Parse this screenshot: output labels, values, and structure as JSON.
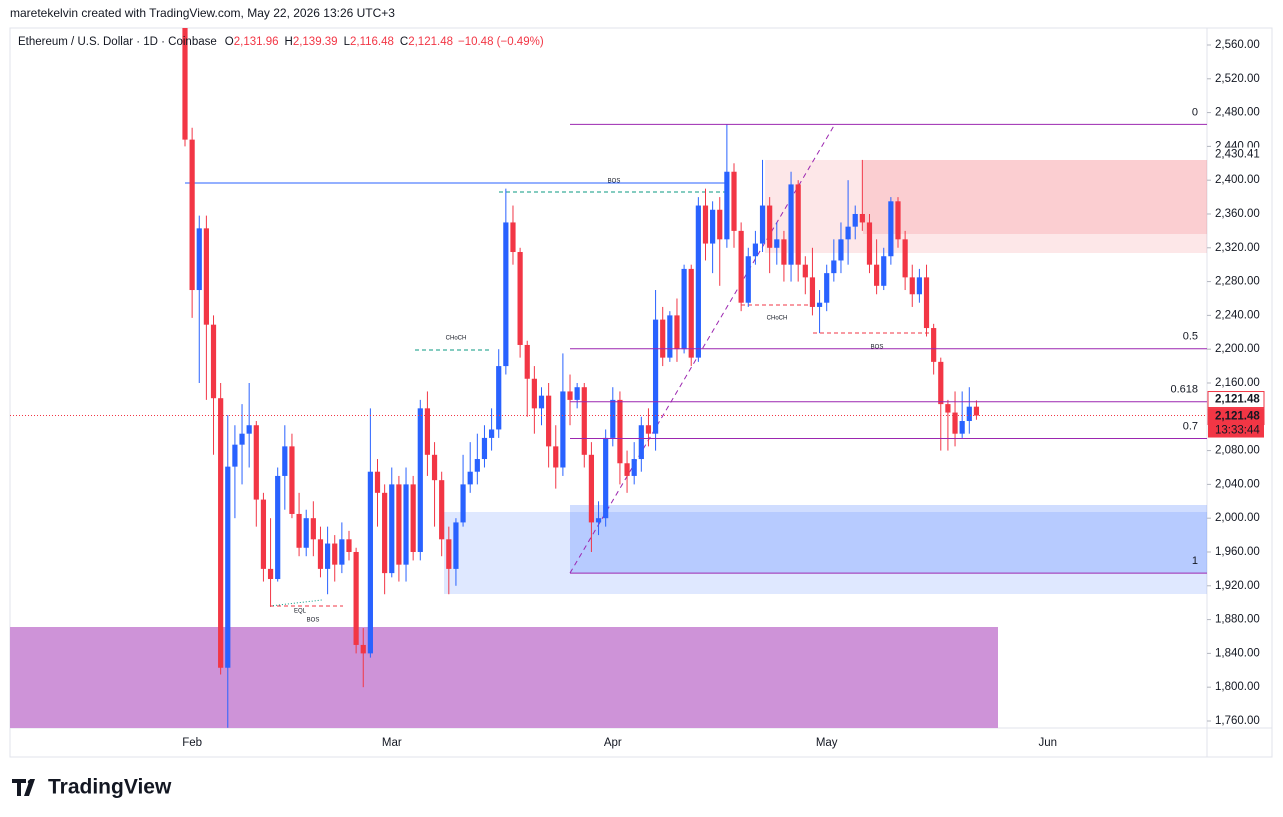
{
  "header": {
    "attribution": "maretekelvin created with TradingView.com, May 22, 2026 13:26 UTC+3"
  },
  "footer": {
    "brand": "TradingView"
  },
  "chart_data": {
    "type": "candlestick",
    "title": "Ethereum / U.S. Dollar · 1D · Coinbase",
    "ohlc_legend": [
      {
        "key": "O",
        "label": "2,131.96"
      },
      {
        "key": "H",
        "label": "2,139.39"
      },
      {
        "key": "L",
        "label": "2,116.48"
      },
      {
        "key": "C",
        "label": "2,121.48"
      }
    ],
    "change_label": "−10.48 (−0.49%)",
    "categories": [
      null,
      "Feb",
      null,
      null,
      null,
      null,
      null,
      null,
      null,
      null,
      null,
      null,
      null,
      null,
      null,
      null,
      null,
      null,
      null,
      null,
      null,
      null,
      null,
      null,
      null,
      null,
      null,
      null,
      null,
      "Mar",
      null,
      null,
      null,
      null,
      null,
      null,
      null,
      null,
      null,
      null,
      null,
      null,
      null,
      null,
      null,
      null,
      null,
      null,
      null,
      null,
      null,
      null,
      null,
      null,
      null,
      null,
      null,
      null,
      null,
      null,
      "Apr",
      null,
      null,
      null,
      null,
      null,
      null,
      null,
      null,
      null,
      null,
      null,
      null,
      null,
      null,
      null,
      null,
      null,
      null,
      null,
      null,
      null,
      null,
      null,
      null,
      null,
      null,
      null,
      null,
      null,
      "May",
      null,
      null,
      null,
      null,
      null,
      null,
      null,
      null,
      null,
      null,
      null,
      null,
      null,
      null,
      null,
      null,
      null,
      null,
      null,
      null,
      null,
      null,
      null,
      null,
      null,
      null,
      null,
      null,
      null,
      null,
      "Jun"
    ],
    "open": [
      2590,
      2448,
      2270,
      2343,
      2229,
      2142,
      1823,
      2061,
      2087,
      2100,
      2110,
      2022,
      1940,
      1928,
      2050,
      2085,
      2005,
      1965,
      2000,
      1975,
      1940,
      1970,
      1945,
      1975,
      1960,
      1850,
      1840,
      2055,
      2030,
      1935,
      2040,
      1945,
      2040,
      1960,
      2130,
      2075,
      2045,
      1975,
      1940,
      1995,
      2040,
      2055,
      2070,
      2095,
      2105,
      2180,
      2350,
      2315,
      2205,
      2165,
      2130,
      2145,
      2085,
      2060,
      2150,
      2140,
      2155,
      2075,
      1995,
      2000,
      2095,
      2140,
      2065,
      2050,
      2070,
      2110,
      2100,
      2235,
      2190,
      2240,
      2200,
      2295,
      2190,
      2370,
      2325,
      2365,
      2330,
      2410,
      2340,
      2255,
      2310,
      2325,
      2370,
      2320,
      2330,
      2300,
      2395,
      2300,
      2285,
      2250,
      2255,
      2290,
      2305,
      2330,
      2345,
      2360,
      2350,
      2300,
      2275,
      2310,
      2375,
      2330,
      2285,
      2265,
      2285,
      2225,
      2185,
      2135,
      2125,
      2100,
      2115,
      2131.96,
      null,
      null,
      null,
      null,
      null,
      null,
      null,
      null,
      null,
      null
    ],
    "high": [
      2600,
      2462,
      2358,
      2358,
      2240,
      2160,
      2122,
      2110,
      2135,
      2160,
      2115,
      2030,
      2000,
      2060,
      2110,
      2100,
      2030,
      2010,
      2020,
      1990,
      1990,
      1980,
      1995,
      1985,
      1965,
      1870,
      2130,
      2070,
      2040,
      2060,
      2050,
      2060,
      2050,
      2140,
      2150,
      2090,
      2055,
      1990,
      2000,
      2075,
      2090,
      2100,
      2110,
      2130,
      2200,
      2390,
      2370,
      2320,
      2210,
      2180,
      2155,
      2160,
      2110,
      2195,
      2170,
      2160,
      2160,
      2090,
      2020,
      2105,
      2155,
      2150,
      2080,
      2090,
      2120,
      2130,
      2270,
      2250,
      2245,
      2260,
      2300,
      2300,
      2380,
      2390,
      2375,
      2380,
      2466,
      2420,
      2350,
      2320,
      2340,
      2424,
      2380,
      2350,
      2340,
      2410,
      2400,
      2310,
      2320,
      2270,
      2300,
      2330,
      2350,
      2400,
      2370,
      2424,
      2360,
      2330,
      2320,
      2380,
      2380,
      2340,
      2300,
      2295,
      2300,
      2230,
      2190,
      2140,
      2150,
      2150,
      2155,
      2139.39,
      null,
      null,
      null,
      null,
      null,
      null,
      null,
      null,
      null,
      null
    ],
    "low": [
      2440,
      2237,
      2160,
      2140,
      2075,
      1815,
      1752,
      2000,
      2040,
      2060,
      1990,
      1925,
      1895,
      1925,
      2010,
      2000,
      1955,
      1955,
      1955,
      1930,
      1910,
      1925,
      1935,
      1950,
      1840,
      1800,
      1835,
      1990,
      1910,
      1930,
      1925,
      1925,
      1950,
      1950,
      2050,
      1990,
      1955,
      1910,
      1920,
      1990,
      2030,
      2040,
      2060,
      2080,
      2095,
      2170,
      2300,
      2190,
      2120,
      2100,
      2110,
      2060,
      2035,
      2050,
      2110,
      2130,
      2060,
      1960,
      1980,
      1990,
      2085,
      2040,
      2030,
      2040,
      2055,
      2085,
      2080,
      2180,
      2185,
      2185,
      2195,
      2180,
      2185,
      2305,
      2290,
      2275,
      2320,
      2320,
      2245,
      2250,
      2300,
      2315,
      2290,
      2300,
      2280,
      2280,
      2280,
      2265,
      2240,
      2219,
      2245,
      2280,
      2290,
      2300,
      2330,
      2340,
      2290,
      2265,
      2270,
      2300,
      2320,
      2270,
      2250,
      2255,
      2215,
      2170,
      2080,
      2080,
      2085,
      2095,
      2100,
      2116.48,
      null,
      null,
      null,
      null,
      null,
      null,
      null,
      null,
      null,
      null
    ],
    "close": [
      2448,
      2270,
      2343,
      2229,
      2142,
      1823,
      2061,
      2087,
      2100,
      2110,
      2022,
      1940,
      1928,
      2050,
      2085,
      2005,
      1965,
      2000,
      1975,
      1940,
      1970,
      1945,
      1975,
      1960,
      1850,
      1840,
      2055,
      2030,
      1935,
      2040,
      1945,
      2040,
      1960,
      2130,
      2075,
      2045,
      1975,
      1940,
      1995,
      2040,
      2055,
      2070,
      2095,
      2105,
      2180,
      2350,
      2315,
      2205,
      2165,
      2130,
      2145,
      2085,
      2060,
      2150,
      2140,
      2155,
      2075,
      1995,
      2000,
      2095,
      2140,
      2065,
      2050,
      2070,
      2110,
      2100,
      2235,
      2190,
      2240,
      2200,
      2295,
      2190,
      2370,
      2325,
      2365,
      2330,
      2410,
      2340,
      2255,
      2310,
      2325,
      2370,
      2320,
      2330,
      2300,
      2395,
      2300,
      2285,
      2250,
      2255,
      2290,
      2305,
      2330,
      2345,
      2360,
      2350,
      2300,
      2275,
      2310,
      2375,
      2330,
      2285,
      2265,
      2285,
      2225,
      2185,
      2135,
      2125,
      2100,
      2115,
      2131.96,
      2121.48,
      null,
      null,
      null,
      null,
      null,
      null,
      null,
      null,
      null,
      null
    ],
    "up_color": "#2962ff",
    "down_color": "#f23645",
    "ylim": [
      1751.7,
      2580.1
    ],
    "yticks": [
      {
        "value": 1760,
        "label": "1,760.00"
      },
      {
        "value": 1800,
        "label": "1,800.00"
      },
      {
        "value": 1840,
        "label": "1,840.00"
      },
      {
        "value": 1880,
        "label": "1,880.00"
      },
      {
        "value": 1920,
        "label": "1,920.00"
      },
      {
        "value": 1960,
        "label": "1,960.00"
      },
      {
        "value": 2000,
        "label": "2,000.00"
      },
      {
        "value": 2040,
        "label": "2,040.00"
      },
      {
        "value": 2080,
        "label": "2,080.00"
      },
      {
        "value": 2160,
        "label": "2,160.00"
      },
      {
        "value": 2200,
        "label": "2,200.00"
      },
      {
        "value": 2240,
        "label": "2,240.00"
      },
      {
        "value": 2280,
        "label": "2,280.00"
      },
      {
        "value": 2320,
        "label": "2,320.00"
      },
      {
        "value": 2360,
        "label": "2,360.00"
      },
      {
        "value": 2400,
        "label": "2,400.00"
      },
      {
        "value": 2440,
        "label": "2,440.00"
      },
      {
        "value": 2480,
        "label": "2,480.00"
      },
      {
        "value": 2520,
        "label": "2,520.00"
      },
      {
        "value": 2560,
        "label": "2,560.00"
      }
    ],
    "price_labels": [
      {
        "value": 2430.41,
        "label": "2,430.41"
      }
    ],
    "last_price_labels": [
      {
        "value": 2121.48,
        "label": "2,121.48"
      },
      {
        "value": 2121.48,
        "label": "2,121.48"
      }
    ],
    "countdown": "13:33:44",
    "fib": {
      "levels": [
        0,
        0.5,
        0.618,
        0.7,
        1
      ],
      "high": 2466,
      "low": 1935,
      "color": "#9c27b0"
    },
    "annotations": [
      "BOS",
      "CHoCH",
      "EQL",
      "BOS",
      "CHoCH",
      "BOS"
    ],
    "grid": false
  }
}
